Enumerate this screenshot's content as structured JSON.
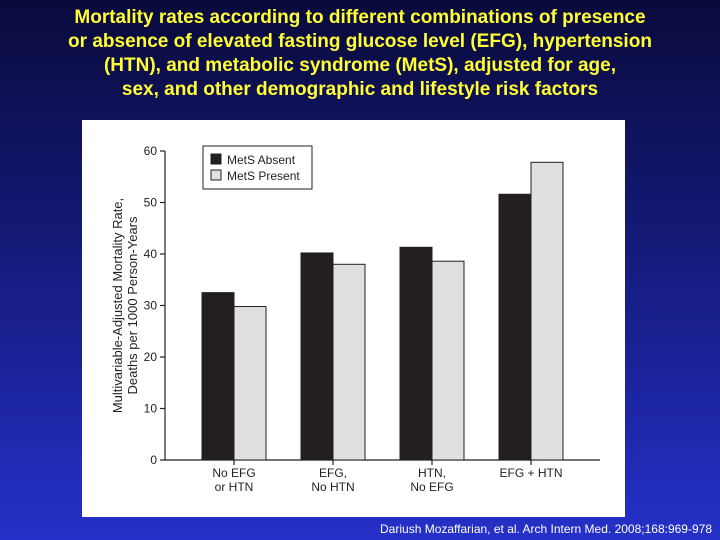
{
  "title_lines": [
    "Mortality rates according to different combinations of presence",
    "or absence of elevated fasting glucose level (EFG), hypertension",
    "(HTN),  and metabolic syndrome (MetS), adjusted for age,",
    "sex, and other  demographic and lifestyle risk factors"
  ],
  "citation": "Dariush Mozaffarian, et al. Arch Intern Med. 2008;168:969-978",
  "colors": {
    "mets_absent": "#231f20",
    "mets_present": "#e0e0e0",
    "title": "#ffff33"
  },
  "chart_data": {
    "type": "bar",
    "ylabel_lines": [
      "Multivariable-Adjusted Mortality Rate,",
      "Deaths per 1000 Person-Years"
    ],
    "ylim": [
      0,
      60
    ],
    "yticks": [
      0,
      10,
      20,
      30,
      40,
      50,
      60
    ],
    "categories": [
      [
        "No EFG",
        "or HTN"
      ],
      [
        "EFG,",
        "No HTN"
      ],
      [
        "HTN,",
        "No EFG"
      ],
      [
        "EFG + HTN"
      ]
    ],
    "series": [
      {
        "name": "MetS Absent",
        "values": [
          32.5,
          40.2,
          41.3,
          51.6
        ]
      },
      {
        "name": "MetS Present",
        "values": [
          29.8,
          38.0,
          38.6,
          57.8
        ]
      }
    ],
    "legend_position": "top-left",
    "grid": false
  }
}
